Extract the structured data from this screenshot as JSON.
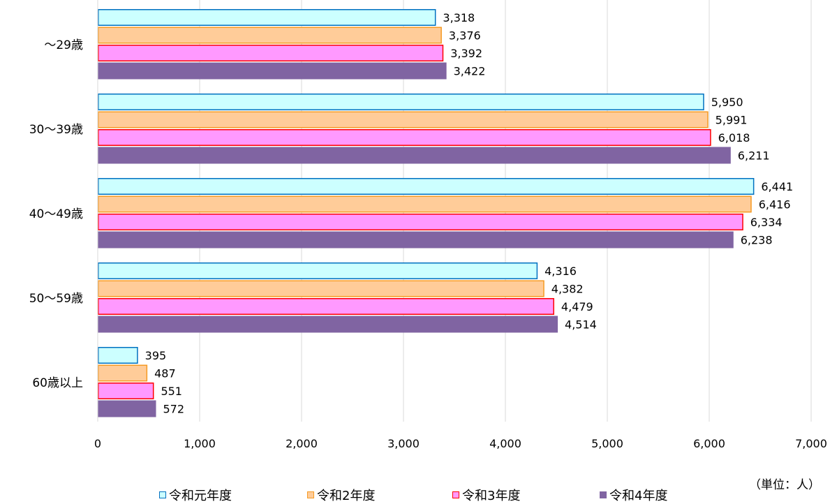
{
  "chart_data": {
    "type": "bar",
    "orientation": "horizontal",
    "categories": [
      "～29歳",
      "30～39歳",
      "40～49歳",
      "50～59歳",
      "60歳以上"
    ],
    "series": [
      {
        "name": "令和元年度",
        "values": [
          3318,
          5950,
          6441,
          4316,
          395
        ],
        "labels": [
          "3,318",
          "5,950",
          "6,441",
          "4,316",
          "395"
        ],
        "fill": "#ccffff",
        "stroke": "#0070c0"
      },
      {
        "name": "令和2年度",
        "values": [
          3376,
          5991,
          6416,
          4382,
          487
        ],
        "labels": [
          "3,376",
          "5,991",
          "6,416",
          "4,382",
          "487"
        ],
        "fill": "#ffcc99",
        "stroke": "#f59a23"
      },
      {
        "name": "令和3年度",
        "values": [
          3392,
          6018,
          6334,
          4479,
          551
        ],
        "labels": [
          "3,392",
          "6,018",
          "6,334",
          "4,479",
          "551"
        ],
        "fill": "#ff99ff",
        "stroke": "#ff0000"
      },
      {
        "name": "令和4年度",
        "values": [
          3422,
          6211,
          6238,
          4514,
          572
        ],
        "labels": [
          "3,422",
          "6,211",
          "6,238",
          "4,514",
          "572"
        ],
        "fill": "#8064a2",
        "stroke": "#8064a2"
      }
    ],
    "xlim": [
      0,
      7000
    ],
    "xticks": [
      0,
      1000,
      2000,
      3000,
      4000,
      5000,
      6000,
      7000
    ],
    "xtick_labels": [
      "0",
      "1,000",
      "2,000",
      "3,000",
      "4,000",
      "5,000",
      "6,000",
      "7,000"
    ],
    "unit_label": "（単位：人）",
    "grid": true,
    "legend_position": "bottom"
  }
}
